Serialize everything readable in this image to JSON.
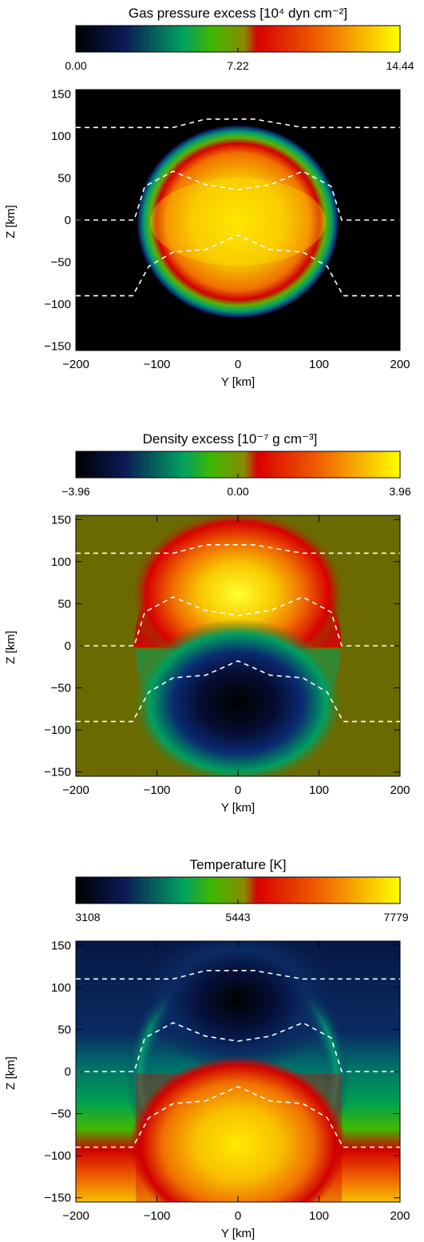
{
  "chart_data": [
    {
      "type": "heatmap",
      "title": "Gas pressure excess [10⁴ dyn cm⁻²]",
      "colorbar_ticks": [
        "0.00",
        "7.22",
        "14.44"
      ],
      "colorbar_range": [
        0.0,
        14.44
      ],
      "xlabel": "Y [km]",
      "ylabel": "Z [km]",
      "xlim": [
        -200,
        200
      ],
      "ylim": [
        -155,
        155
      ],
      "xticks": [
        "−200",
        "−100",
        "0",
        "100",
        "200"
      ],
      "yticks": [
        "−150",
        "−100",
        "−50",
        "0",
        "50",
        "100",
        "150"
      ],
      "background": "#000000",
      "blob": {
        "center": [
          0,
          0
        ],
        "radius_y": 128,
        "radius_z": 120,
        "peak": 13.8
      },
      "contours_overlay": true
    },
    {
      "type": "heatmap",
      "title": "Density excess [10⁻⁷ g cm⁻³]",
      "colorbar_ticks": [
        "−3.96",
        "0.00",
        "3.96"
      ],
      "colorbar_range": [
        -3.96,
        3.96
      ],
      "xlabel": "Y [km]",
      "ylabel": "Z [km]",
      "xlim": [
        -200,
        200
      ],
      "ylim": [
        -155,
        155
      ],
      "xticks": [
        "−200",
        "−100",
        "0",
        "100",
        "200"
      ],
      "yticks": [
        "−150",
        "−100",
        "−50",
        "0",
        "50",
        "100",
        "150"
      ],
      "background": "#6b6a00",
      "blob": {
        "upper_peak": 3.8,
        "upper_center": [
          0,
          65
        ],
        "lower_peak": -3.9,
        "lower_center": [
          0,
          -65
        ]
      },
      "contours_overlay": true
    },
    {
      "type": "heatmap",
      "title": "Temperature [K]",
      "colorbar_ticks": [
        "3108",
        "5443",
        "7779"
      ],
      "colorbar_range": [
        3108,
        7779
      ],
      "xlabel": "Y [km]",
      "ylabel": "Z [km]",
      "xlim": [
        -200,
        200
      ],
      "ylim": [
        -155,
        155
      ],
      "xticks": [
        "−200",
        "−100",
        "0",
        "100",
        "200"
      ],
      "yticks": [
        "−150",
        "−100",
        "−50",
        "0",
        "50",
        "100",
        "150"
      ],
      "background": "vertical gradient: hot at bottom, cool at top",
      "contours_overlay": true
    }
  ],
  "contours": [
    [
      [
        -200,
        110
      ],
      [
        -80,
        110
      ],
      [
        -40,
        120
      ],
      [
        20,
        120
      ],
      [
        80,
        110
      ],
      [
        200,
        110
      ]
    ],
    [
      [
        -200,
        0
      ],
      [
        -128,
        0
      ],
      [
        -115,
        40
      ],
      [
        -80,
        58
      ],
      [
        -40,
        42
      ],
      [
        0,
        36
      ],
      [
        40,
        42
      ],
      [
        80,
        58
      ],
      [
        115,
        40
      ],
      [
        128,
        0
      ],
      [
        200,
        0
      ]
    ],
    [
      [
        -200,
        -90
      ],
      [
        -130,
        -90
      ],
      [
        -110,
        -55
      ],
      [
        -80,
        -38
      ],
      [
        -40,
        -35
      ],
      [
        0,
        -18
      ],
      [
        40,
        -35
      ],
      [
        80,
        -38
      ],
      [
        110,
        -55
      ],
      [
        130,
        -90
      ],
      [
        200,
        -90
      ]
    ]
  ],
  "colormap": [
    "#000000",
    "#102060",
    "#008c3c",
    "#4cc000",
    "#8a8a00",
    "#d40000",
    "#f06000",
    "#f8b000",
    "#ffff00"
  ]
}
